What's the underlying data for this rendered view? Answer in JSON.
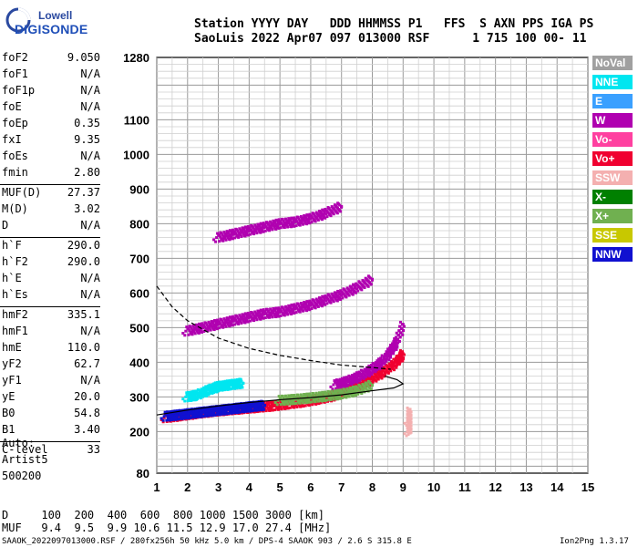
{
  "logo": {
    "line1": "Lowell",
    "line2": "DIGISONDE"
  },
  "header": {
    "labels": "Station YYYY DAY   DDD HHMMSS P1   FFS  S AXN PPS IGA PS",
    "values": "SaoLuis 2022 Apr07 097 013000 RSF      1 715 100 00- 11"
  },
  "params": [
    {
      "name": "foF2",
      "value": "9.050"
    },
    {
      "name": "foF1",
      "value": "N/A"
    },
    {
      "name": "foF1p",
      "value": "N/A"
    },
    {
      "name": "foE",
      "value": "N/A"
    },
    {
      "name": "foEp",
      "value": "0.35"
    },
    {
      "name": "fxI",
      "value": "9.35"
    },
    {
      "name": "foEs",
      "value": "N/A"
    },
    {
      "name": "fmin",
      "value": "2.80"
    },
    {
      "name": "MUF(D)",
      "value": "27.37"
    },
    {
      "name": "M(D)",
      "value": "3.02"
    },
    {
      "name": "D",
      "value": "N/A"
    },
    {
      "name": "h`F",
      "value": "290.0"
    },
    {
      "name": "h`F2",
      "value": "290.0"
    },
    {
      "name": "h`E",
      "value": "N/A"
    },
    {
      "name": "h`Es",
      "value": "N/A"
    },
    {
      "name": "hmF2",
      "value": "335.1"
    },
    {
      "name": "hmF1",
      "value": "N/A"
    },
    {
      "name": "hmE",
      "value": "110.0"
    },
    {
      "name": "yF2",
      "value": "62.7"
    },
    {
      "name": "yF1",
      "value": "N/A"
    },
    {
      "name": "yE",
      "value": "20.0"
    },
    {
      "name": "B0",
      "value": "54.8"
    },
    {
      "name": "B1",
      "value": "3.40"
    },
    {
      "name": "C-level",
      "value": "33"
    }
  ],
  "auto": {
    "line1": "Auto:",
    "line2": "Artist5",
    "line3": "500200"
  },
  "legend": [
    {
      "label": "NoVal",
      "color": "#a0a0a0"
    },
    {
      "label": "NNE",
      "color": "#00e6f0"
    },
    {
      "label": "E",
      "color": "#3aa0ff"
    },
    {
      "label": "W",
      "color": "#b000b0"
    },
    {
      "label": "Vo-",
      "color": "#ff40a0"
    },
    {
      "label": "Vo+",
      "color": "#f00030"
    },
    {
      "label": "SSW",
      "color": "#f4b0b0"
    },
    {
      "label": "X-",
      "color": "#008000"
    },
    {
      "label": "X+",
      "color": "#70b050"
    },
    {
      "label": "SSE",
      "color": "#c8c800"
    },
    {
      "label": "NNW",
      "color": "#1010d0"
    }
  ],
  "muf_table": {
    "d_line": "D     100  200  400  600  800 1000 1500 3000 [km]",
    "muf_line": "MUF   9.4  9.5  9.9 10.6 11.5 12.9 17.0 27.4 [MHz]"
  },
  "footer": {
    "left": "SAAOK_2022097013000.RSF / 280fx256h 50 kHz 5.0 km / DPS-4 SAAOK 903 / 2.6 S 315.8 E",
    "right": "Ion2Png 1.3.17"
  },
  "chart_data": {
    "type": "scatter",
    "xlim": [
      1,
      15
    ],
    "ylim": [
      80,
      1280
    ],
    "x_ticks": [
      "1",
      "2",
      "3",
      "4",
      "5",
      "6",
      "7",
      "8",
      "9",
      "10",
      "11",
      "12",
      "13",
      "14",
      "15"
    ],
    "y_ticks": [
      "80",
      "200",
      "300",
      "400",
      "500",
      "600",
      "700",
      "800",
      "900",
      "1000",
      "1100",
      "1280"
    ],
    "grid": true,
    "legend_position": "right",
    "series": [
      {
        "name": "Vo+",
        "color": "#f00030",
        "traces": [
          {
            "x": [
              1.3,
              1.8,
              2.3,
              2.8,
              3.3,
              3.8,
              4.3,
              4.8,
              5.3,
              5.8,
              6.3,
              6.8,
              7.2,
              7.6,
              8.0,
              8.4,
              8.8,
              9.0
            ],
            "y": [
              240,
              246,
              252,
              258,
              262,
              266,
              270,
              274,
              280,
              286,
              294,
              304,
              318,
              334,
              352,
              374,
              400,
              425
            ]
          }
        ]
      },
      {
        "name": "W",
        "color": "#b000b0",
        "traces": [
          {
            "x": [
              6.8,
              7.2,
              7.6,
              8.0,
              8.3,
              8.6,
              8.8,
              9.0
            ],
            "y": [
              335,
              345,
              360,
              380,
              400,
              430,
              460,
              510
            ]
          },
          {
            "x": [
              2.0,
              2.5,
              3.0,
              3.5,
              4.0,
              4.5,
              5.0,
              5.5,
              6.0,
              6.5,
              7.0,
              7.5,
              8.0
            ],
            "y": [
              490,
              500,
              510,
              520,
              530,
              540,
              545,
              555,
              565,
              580,
              595,
              615,
              640
            ]
          },
          {
            "x": [
              3.0,
              3.5,
              4.0,
              4.5,
              5.0,
              5.5,
              6.0,
              6.5,
              7.0
            ],
            "y": [
              760,
              770,
              780,
              790,
              800,
              805,
              815,
              830,
              850
            ]
          }
        ]
      },
      {
        "name": "NNW",
        "color": "#1010d0",
        "traces": [
          {
            "x": [
              1.3,
              1.7,
              2.1,
              2.5,
              2.9,
              3.3,
              3.7,
              4.1,
              4.5
            ],
            "y": [
              244,
              248,
              252,
              256,
              260,
              264,
              268,
              272,
              276
            ]
          }
        ]
      },
      {
        "name": "NNE",
        "color": "#00e6f0",
        "traces": [
          {
            "x": [
              2.0,
              2.3,
              2.7,
              3.0,
              3.4,
              3.8
            ],
            "y": [
              300,
              305,
              320,
              330,
              335,
              340
            ]
          }
        ]
      },
      {
        "name": "X+",
        "color": "#70b050",
        "traces": [
          {
            "x": [
              5.0,
              5.5,
              6.0,
              6.5,
              7.0,
              7.5,
              8.0
            ],
            "y": [
              290,
              293,
              297,
              302,
              308,
              318,
              335
            ]
          }
        ]
      },
      {
        "name": "SSW",
        "color": "#f4b0b0",
        "traces": [
          {
            "x": [
              9.2,
              9.2,
              9.2
            ],
            "y": [
              200,
              230,
              260
            ]
          }
        ]
      }
    ],
    "fitted_curve": {
      "x": [
        1.0,
        2.0,
        3.0,
        4.0,
        5.0,
        6.0,
        7.0,
        8.0,
        8.7,
        9.0,
        8.8,
        8.4
      ],
      "y": [
        248,
        262,
        274,
        284,
        292,
        298,
        306,
        318,
        326,
        338,
        350,
        360
      ]
    },
    "density_curve": {
      "x": [
        1.0,
        1.5,
        2.0,
        3.0,
        4.0,
        5.0,
        6.0,
        7.0,
        8.0,
        8.6
      ],
      "y": [
        620,
        560,
        520,
        470,
        440,
        420,
        405,
        392,
        385,
        380
      ]
    }
  }
}
